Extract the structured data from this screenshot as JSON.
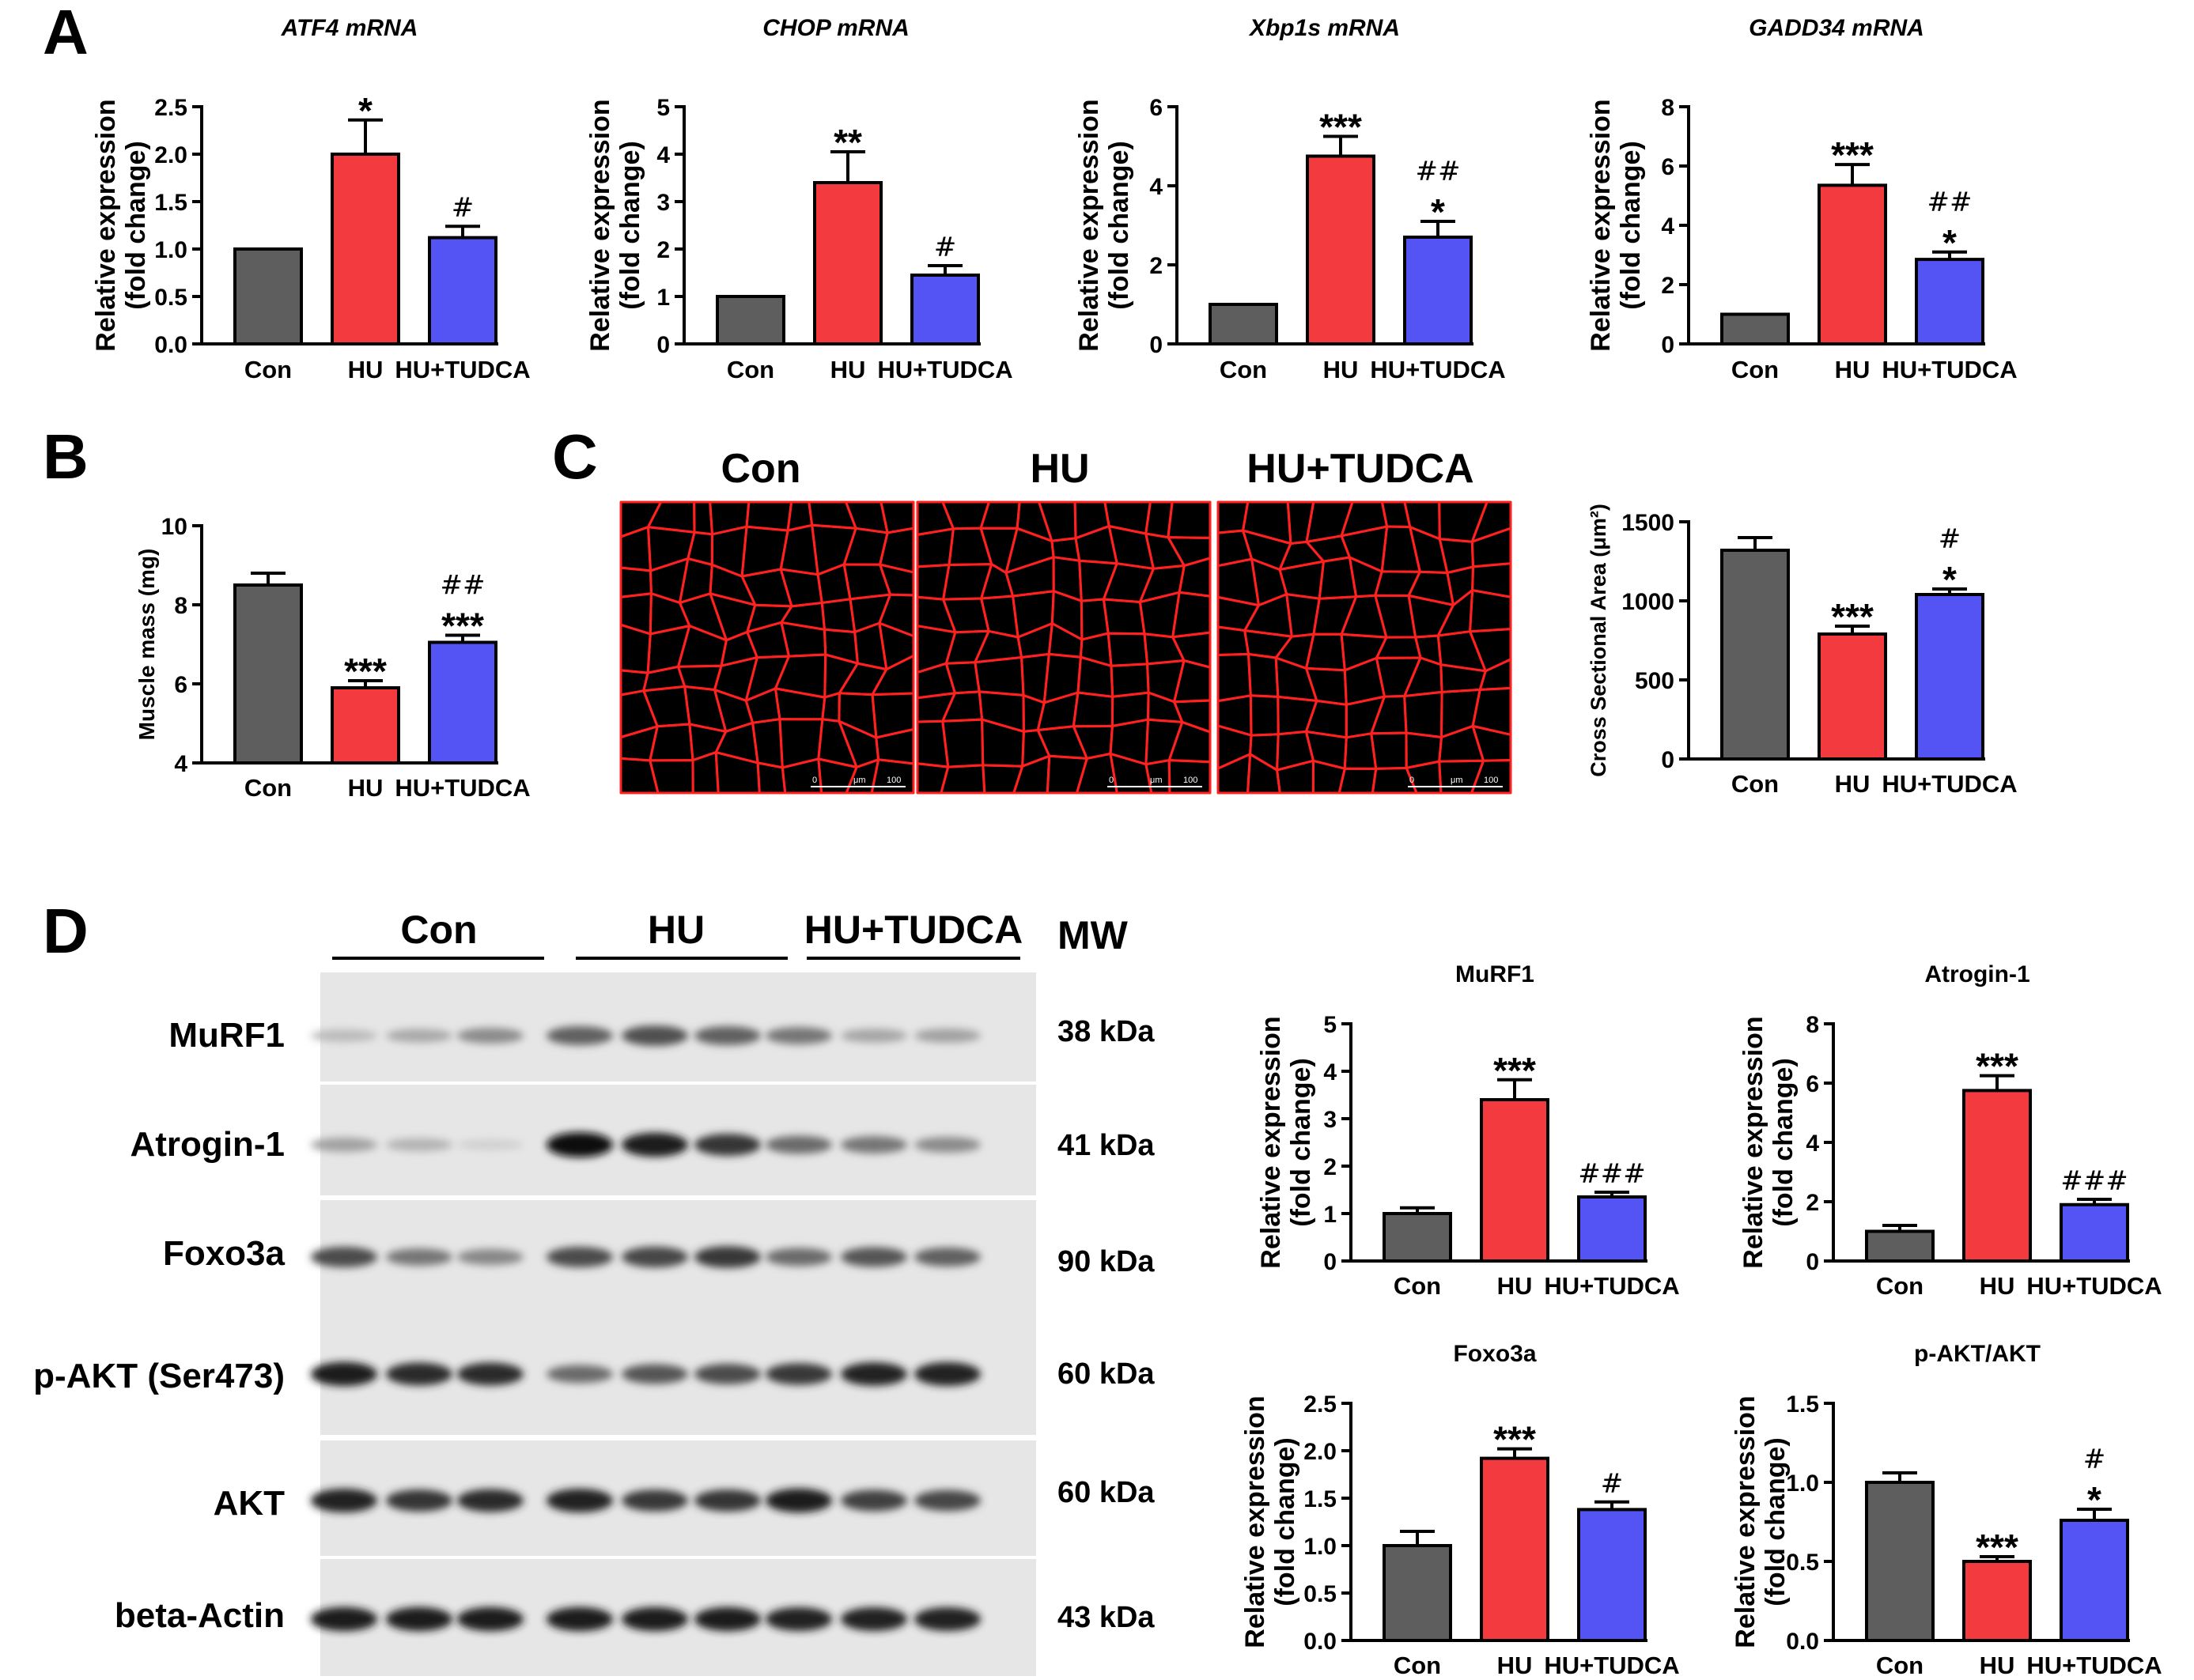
{
  "panels": {
    "a": "A",
    "b": "B",
    "c": "C",
    "d": "D"
  },
  "colors": {
    "con": "#5e5e5e",
    "hu": "#f23a3f",
    "tudca": "#5454f5"
  },
  "chart_data": [
    {
      "id": "atf4",
      "type": "bar",
      "title": "ATF4  mRNA",
      "title_style": "italic",
      "ylabel": [
        "Relative expression",
        "(fold change)"
      ],
      "categories": [
        "Con",
        "HU",
        "HU+TUDCA"
      ],
      "values": [
        1.0,
        2.0,
        1.12
      ],
      "errors": [
        0,
        0.36,
        0.12
      ],
      "annotations": [
        [],
        [
          "*"
        ],
        [
          "#"
        ]
      ],
      "ylim": [
        0,
        2.5
      ],
      "yticks": [
        "0.0",
        "0.5",
        "1.0",
        "1.5",
        "2.0",
        "2.5"
      ]
    },
    {
      "id": "chop",
      "type": "bar",
      "title": "CHOP  mRNA",
      "title_style": "italic",
      "ylabel": [
        "Relative expression",
        "(fold change)"
      ],
      "categories": [
        "Con",
        "HU",
        "HU+TUDCA"
      ],
      "values": [
        1.0,
        3.4,
        1.45
      ],
      "errors": [
        0,
        0.65,
        0.2
      ],
      "annotations": [
        [],
        [
          "**"
        ],
        [
          "#"
        ]
      ],
      "ylim": [
        0,
        5
      ],
      "yticks": [
        "0",
        "1",
        "2",
        "3",
        "4",
        "5"
      ]
    },
    {
      "id": "xbp1s",
      "type": "bar",
      "title": "Xbp1s  mRNA",
      "title_style": "italic",
      "ylabel": [
        "Relative expression",
        "(fold change)"
      ],
      "categories": [
        "Con",
        "HU",
        "HU+TUDCA"
      ],
      "values": [
        1.0,
        4.75,
        2.7
      ],
      "errors": [
        0,
        0.5,
        0.4
      ],
      "annotations": [
        [],
        [
          "***"
        ],
        [
          "*",
          "##"
        ]
      ],
      "ylim": [
        0,
        6
      ],
      "yticks": [
        "0",
        "2",
        "4",
        "6"
      ]
    },
    {
      "id": "gadd34",
      "type": "bar",
      "title": "GADD34  mRNA",
      "title_style": "italic",
      "ylabel": [
        "Relative expression",
        "(fold change)"
      ],
      "categories": [
        "Con",
        "HU",
        "HU+TUDCA"
      ],
      "values": [
        1.0,
        5.35,
        2.85
      ],
      "errors": [
        0,
        0.7,
        0.25
      ],
      "annotations": [
        [],
        [
          "***"
        ],
        [
          "*",
          "##"
        ]
      ],
      "ylim": [
        0,
        8
      ],
      "yticks": [
        "0",
        "2",
        "4",
        "6",
        "8"
      ]
    },
    {
      "id": "muscle_mass",
      "type": "bar",
      "title": "",
      "ylabel": [
        "Muscle mass (mg)"
      ],
      "categories": [
        "Con",
        "HU",
        "HU+TUDCA"
      ],
      "values": [
        8.5,
        5.9,
        7.05
      ],
      "errors": [
        0.3,
        0.18,
        0.18
      ],
      "annotations": [
        [],
        [
          "***"
        ],
        [
          "***",
          "##"
        ]
      ],
      "ylim": [
        4,
        10
      ],
      "yticks": [
        "4",
        "6",
        "8",
        "10"
      ]
    },
    {
      "id": "csa",
      "type": "bar",
      "title": "",
      "ylabel": [
        "Cross Sectional Area (μm²)"
      ],
      "categories": [
        "Con",
        "HU",
        "HU+TUDCA"
      ],
      "values": [
        1320,
        790,
        1040
      ],
      "errors": [
        80,
        50,
        35
      ],
      "annotations": [
        [],
        [
          "***"
        ],
        [
          "*",
          "#"
        ]
      ],
      "ylim": [
        0,
        1500
      ],
      "yticks": [
        "0",
        "500",
        "1000",
        "1500"
      ]
    },
    {
      "id": "murf1",
      "type": "bar",
      "title": "MuRF1",
      "title_style": "plain",
      "ylabel": [
        "Relative expression",
        "(fold change)"
      ],
      "categories": [
        "Con",
        "HU",
        "HU+TUDCA"
      ],
      "values": [
        1.0,
        3.4,
        1.35
      ],
      "errors": [
        0.12,
        0.42,
        0.1
      ],
      "annotations": [
        [],
        [
          "***"
        ],
        [
          "###"
        ]
      ],
      "ylim": [
        0,
        5
      ],
      "yticks": [
        "0",
        "1",
        "2",
        "3",
        "4",
        "5"
      ]
    },
    {
      "id": "atrogin1",
      "type": "bar",
      "title": "Atrogin-1",
      "title_style": "plain",
      "ylabel": [
        "Relative expression",
        "(fold change)"
      ],
      "categories": [
        "Con",
        "HU",
        "HU+TUDCA"
      ],
      "values": [
        1.0,
        5.75,
        1.9
      ],
      "errors": [
        0.2,
        0.5,
        0.18
      ],
      "annotations": [
        [],
        [
          "***"
        ],
        [
          "###"
        ]
      ],
      "ylim": [
        0,
        8
      ],
      "yticks": [
        "0",
        "2",
        "4",
        "6",
        "8"
      ]
    },
    {
      "id": "foxo3a",
      "type": "bar",
      "title": "Foxo3a",
      "title_style": "plain",
      "ylabel": [
        "Relative expression",
        "(fold change)"
      ],
      "categories": [
        "Con",
        "HU",
        "HU+TUDCA"
      ],
      "values": [
        1.0,
        1.92,
        1.38
      ],
      "errors": [
        0.15,
        0.1,
        0.08
      ],
      "annotations": [
        [],
        [
          "***"
        ],
        [
          "#"
        ]
      ],
      "ylim": [
        0,
        2.5
      ],
      "yticks": [
        "0.0",
        "0.5",
        "1.0",
        "1.5",
        "2.0",
        "2.5"
      ]
    },
    {
      "id": "pakt_akt",
      "type": "bar",
      "title": "p-AKT/AKT",
      "title_style": "plain",
      "ylabel": [
        "Relative expression",
        "(fold change)"
      ],
      "categories": [
        "Con",
        "HU",
        "HU+TUDCA"
      ],
      "values": [
        1.0,
        0.5,
        0.76
      ],
      "errors": [
        0.06,
        0.03,
        0.07
      ],
      "annotations": [
        [],
        [
          "***"
        ],
        [
          "*",
          "#"
        ]
      ],
      "ylim": [
        0,
        1.5
      ],
      "yticks": [
        "0.0",
        "0.5",
        "1.0",
        "1.5"
      ]
    }
  ],
  "micrographs": {
    "labels": [
      "Con",
      "HU",
      "HU+TUDCA"
    ],
    "scale_bar": [
      "0",
      "μm",
      "100"
    ]
  },
  "western_blot": {
    "groups": [
      "Con",
      "HU",
      "HU+TUDCA"
    ],
    "mw_header": "MW",
    "rows": [
      {
        "label": "MuRF1",
        "mw": "38 kDa",
        "intensity": [
          0.18,
          0.26,
          0.4,
          0.6,
          0.68,
          0.6,
          0.5,
          0.28,
          0.3
        ]
      },
      {
        "label": "Atrogin-1",
        "mw": "41 kDa",
        "intensity": [
          0.3,
          0.22,
          0.08,
          0.98,
          0.92,
          0.8,
          0.55,
          0.5,
          0.4
        ]
      },
      {
        "label": "Foxo3a",
        "mw": "90 kDa",
        "intensity": [
          0.7,
          0.5,
          0.42,
          0.7,
          0.72,
          0.78,
          0.55,
          0.65,
          0.6
        ]
      },
      {
        "label": "p-AKT (Ser473)",
        "mw": "60 kDa",
        "intensity": [
          0.92,
          0.85,
          0.85,
          0.55,
          0.65,
          0.7,
          0.78,
          0.88,
          0.9
        ]
      },
      {
        "label": "AKT",
        "mw": "60 kDa",
        "intensity": [
          0.9,
          0.8,
          0.85,
          0.9,
          0.78,
          0.8,
          0.92,
          0.75,
          0.72
        ]
      },
      {
        "label": "beta-Actin",
        "mw": "43 kDa",
        "intensity": [
          0.92,
          0.92,
          0.92,
          0.92,
          0.92,
          0.92,
          0.9,
          0.9,
          0.9
        ]
      }
    ]
  }
}
